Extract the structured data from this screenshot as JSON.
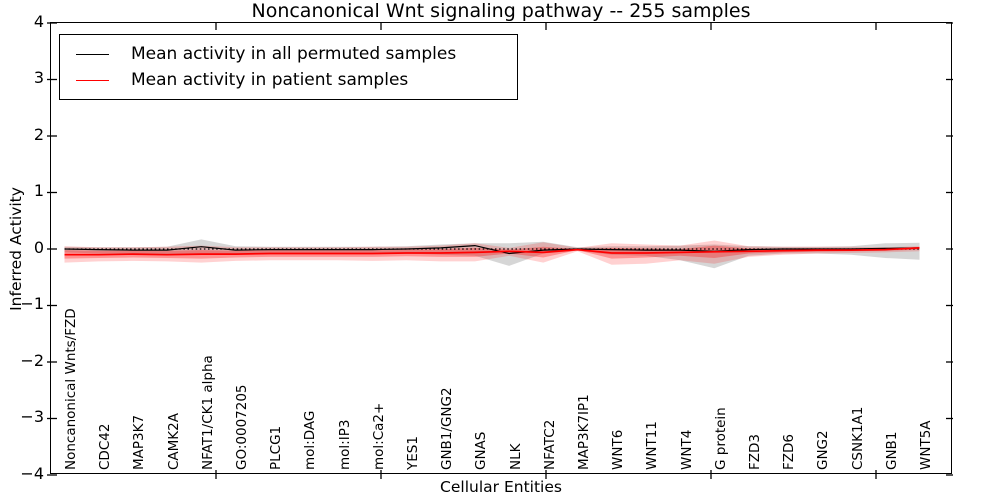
{
  "figure": {
    "title": "Noncanonical Wnt signaling pathway -- 255 samples",
    "xlabel": "Cellular Entities",
    "ylabel": "Inferred Activity",
    "background_color": "#ffffff",
    "spine_color": "#000000"
  },
  "legend": {
    "entries": [
      {
        "label": "Mean activity in all permuted samples",
        "color": "#000000"
      },
      {
        "label": "Mean activity in patient samples",
        "color": "#ff0000"
      }
    ]
  },
  "chart_data": {
    "type": "line",
    "title": "Noncanonical Wnt signaling pathway -- 255 samples",
    "xlabel": "Cellular Entities",
    "ylabel": "Inferred Activity",
    "ylim": [
      -4,
      4
    ],
    "grid": false,
    "legend_position": "upper left",
    "yticks": [
      {
        "value": 4,
        "label": "4"
      },
      {
        "value": 3,
        "label": "3"
      },
      {
        "value": 2,
        "label": "2"
      },
      {
        "value": 1,
        "label": "1"
      },
      {
        "value": 0,
        "label": "0"
      },
      {
        "value": -1,
        "label": "−1"
      },
      {
        "value": -2,
        "label": "−2"
      },
      {
        "value": -3,
        "label": "−3"
      },
      {
        "value": -4,
        "label": "−4"
      }
    ],
    "categories": [
      "Noncanonical Wnts/FZD",
      "CDC42",
      "MAP3K7",
      "CAMK2A",
      "NFAT1/CK1 alpha",
      "GO:0007205",
      "PLCG1",
      "mol:DAG",
      "mol:IP3",
      "mol:Ca2+",
      "YES1",
      "GNB1/GNG2",
      "GNAS",
      "NLK",
      "NFATC2",
      "MAP3K7IP1",
      "WNT6",
      "WNT11",
      "WNT4",
      "G protein",
      "FZD3",
      "FZD6",
      "GNG2",
      "CSNK1A1",
      "GNB1",
      "WNT5A"
    ],
    "zero_line": {
      "value": 0,
      "style": "dotted",
      "color": "#000000"
    },
    "series": [
      {
        "name": "Mean activity in all permuted samples",
        "color": "#000000",
        "width": 1.2,
        "values": [
          0.0,
          -0.01,
          -0.02,
          -0.02,
          0.04,
          -0.02,
          -0.01,
          -0.01,
          -0.01,
          -0.01,
          0.0,
          0.02,
          0.06,
          -0.08,
          -0.02,
          0.0,
          -0.01,
          -0.02,
          -0.02,
          -0.04,
          -0.01,
          0.0,
          0.0,
          0.0,
          0.01,
          0.02
        ]
      },
      {
        "name": "Mean activity in patient samples",
        "color": "#ff0000",
        "width": 1.7,
        "values": [
          -0.1,
          -0.1,
          -0.09,
          -0.1,
          -0.09,
          -0.09,
          -0.08,
          -0.08,
          -0.08,
          -0.08,
          -0.07,
          -0.07,
          -0.06,
          -0.04,
          -0.06,
          -0.01,
          -0.07,
          -0.07,
          -0.06,
          -0.05,
          -0.04,
          -0.03,
          -0.02,
          -0.02,
          -0.01,
          0.02
        ]
      }
    ],
    "bands": [
      {
        "name": "permuted-samples-range",
        "color": "rgba(0,0,0,0.16)",
        "upper": [
          0.04,
          0.03,
          0.03,
          0.04,
          0.17,
          0.05,
          0.04,
          0.04,
          0.04,
          0.04,
          0.05,
          0.08,
          0.1,
          0.1,
          0.13,
          0.03,
          0.05,
          0.05,
          0.06,
          0.08,
          0.05,
          0.04,
          0.04,
          0.05,
          0.1,
          0.11
        ],
        "lower": [
          -0.06,
          -0.08,
          -0.08,
          -0.1,
          -0.1,
          -0.08,
          -0.07,
          -0.07,
          -0.07,
          -0.07,
          -0.08,
          -0.1,
          -0.12,
          -0.3,
          -0.08,
          -0.03,
          -0.1,
          -0.12,
          -0.2,
          -0.34,
          -0.12,
          -0.08,
          -0.08,
          -0.1,
          -0.16,
          -0.19
        ]
      },
      {
        "name": "patient-samples-outer",
        "color": "rgba(255,0,0,0.18)",
        "upper": [
          0.05,
          0.03,
          0.03,
          0.04,
          0.06,
          0.03,
          0.03,
          0.03,
          0.03,
          0.04,
          0.04,
          0.06,
          0.1,
          0.02,
          0.12,
          0.02,
          0.1,
          0.08,
          0.06,
          0.15,
          0.05,
          0.04,
          0.04,
          0.04,
          0.03,
          0.05
        ],
        "lower": [
          -0.24,
          -0.22,
          -0.21,
          -0.22,
          -0.24,
          -0.21,
          -0.2,
          -0.2,
          -0.2,
          -0.21,
          -0.2,
          -0.22,
          -0.22,
          -0.12,
          -0.24,
          -0.04,
          -0.28,
          -0.26,
          -0.2,
          -0.26,
          -0.14,
          -0.1,
          -0.08,
          -0.07,
          -0.06,
          -0.04
        ]
      },
      {
        "name": "patient-samples-inner",
        "color": "rgba(255,0,0,0.30)",
        "upper": [
          -0.02,
          -0.03,
          -0.03,
          -0.03,
          -0.02,
          -0.03,
          -0.02,
          -0.02,
          -0.02,
          -0.02,
          -0.01,
          0.0,
          0.02,
          -0.01,
          0.04,
          0.0,
          0.02,
          0.01,
          0.0,
          0.06,
          0.01,
          0.0,
          0.0,
          0.0,
          0.0,
          0.02
        ],
        "lower": [
          -0.17,
          -0.16,
          -0.15,
          -0.16,
          -0.17,
          -0.15,
          -0.14,
          -0.14,
          -0.14,
          -0.14,
          -0.13,
          -0.14,
          -0.14,
          -0.08,
          -0.15,
          -0.02,
          -0.17,
          -0.15,
          -0.12,
          -0.16,
          -0.08,
          -0.06,
          -0.05,
          -0.04,
          -0.03,
          -0.01
        ]
      }
    ]
  }
}
